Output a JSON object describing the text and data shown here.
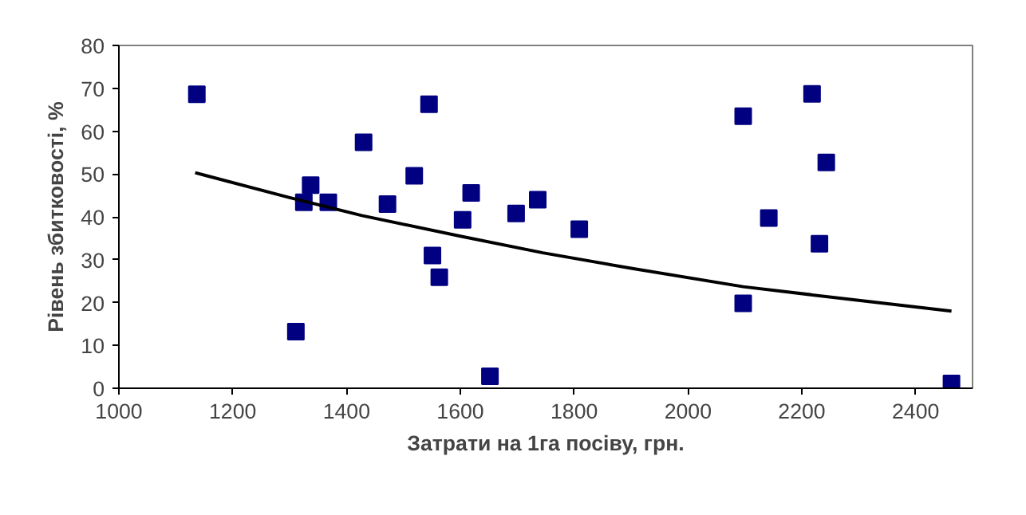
{
  "chart_data": {
    "type": "scatter",
    "xlabel": "Затрати на 1га посіву, грн.",
    "ylabel": "Рівень збитковості, %",
    "xlim": [
      1000,
      2500
    ],
    "xticks": [
      1000,
      1200,
      1400,
      1600,
      1800,
      2000,
      2200,
      2400
    ],
    "ylim": [
      0,
      80
    ],
    "yticks": [
      0,
      10,
      20,
      30,
      40,
      50,
      60,
      70,
      80
    ],
    "grid": false,
    "marker": "square",
    "series": [
      {
        "color": "#000080",
        "x": [
          1137,
          1311,
          1325,
          1337,
          1368,
          1430,
          1472,
          1519,
          1545,
          1551,
          1563,
          1604,
          1619,
          1652,
          1698,
          1736,
          1809,
          2097,
          2097,
          2142,
          2218,
          2231,
          2243,
          2463
        ],
        "values": [
          68.6,
          13.2,
          43.4,
          47.4,
          43.4,
          57.4,
          43.0,
          49.6,
          66.3,
          31.0,
          25.9,
          39.3,
          45.6,
          2.8,
          40.8,
          44.0,
          37.1,
          63.5,
          19.8,
          39.7,
          68.7,
          33.7,
          52.7,
          1.1
        ]
      },
      {
        "type": "line",
        "color": "#000000",
        "marker": "none",
        "line_style": "solid",
        "x": [
          1134,
          1300,
          1427,
          1600,
          1745,
          1900,
          2097,
          2300,
          2463
        ],
        "values": [
          50.3,
          44.5,
          40.3,
          35.5,
          31.6,
          28.0,
          23.7,
          20.5,
          18.0
        ]
      }
    ]
  }
}
